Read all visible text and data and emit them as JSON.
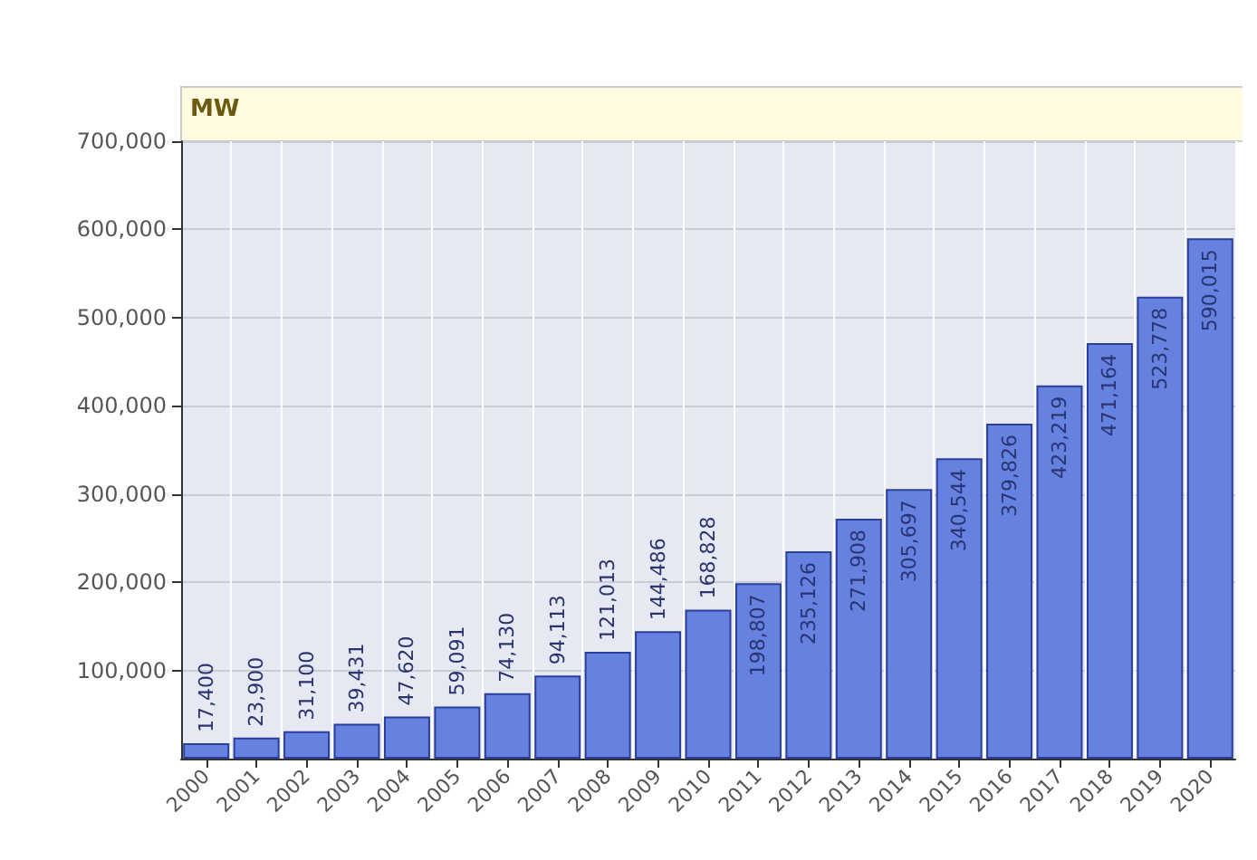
{
  "chart_data": {
    "type": "bar",
    "ylabel": "MW",
    "categories": [
      "2000",
      "2001",
      "2002",
      "2003",
      "2004",
      "2005",
      "2006",
      "2007",
      "2008",
      "2009",
      "2010",
      "2011",
      "2012",
      "2013",
      "2014",
      "2015",
      "2016",
      "2017",
      "2018",
      "2019",
      "2020"
    ],
    "values": [
      17400,
      23900,
      31100,
      39431,
      47620,
      59091,
      74130,
      94113,
      121013,
      144486,
      168828,
      198807,
      235126,
      271908,
      305697,
      340544,
      379826,
      423219,
      471164,
      523778,
      590015
    ],
    "value_labels": [
      "17,400",
      "23,900",
      "31,100",
      "39,431",
      "47,620",
      "59,091",
      "74,130",
      "94,113",
      "121,013",
      "144,486",
      "168,828",
      "198,807",
      "235,126",
      "271,908",
      "305,697",
      "340,544",
      "379,826",
      "423,219",
      "471,164",
      "523,778",
      "590,015"
    ],
    "color": "#6682e0",
    "ylim": [
      0,
      700000
    ],
    "yticks": [
      {
        "value": 100000,
        "label": "100,000"
      },
      {
        "value": 200000,
        "label": "200,000"
      },
      {
        "value": 300000,
        "label": "300,000"
      },
      {
        "value": 400000,
        "label": "400,000"
      },
      {
        "value": 500000,
        "label": "500,000"
      },
      {
        "value": 600000,
        "label": "600,000"
      },
      {
        "value": 700000,
        "label": "700,000"
      }
    ],
    "grid": true
  }
}
